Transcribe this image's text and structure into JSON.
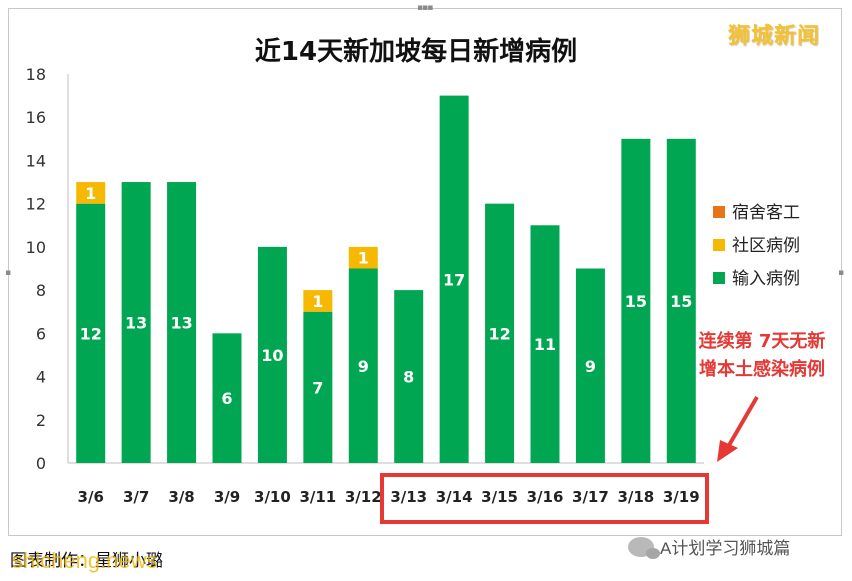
{
  "chart_data": {
    "type": "bar",
    "stacked": true,
    "title": "近14天新加坡每日新增病例",
    "categories": [
      "3/6",
      "3/7",
      "3/8",
      "3/9",
      "3/10",
      "3/11",
      "3/12",
      "3/13",
      "3/14",
      "3/15",
      "3/16",
      "3/17",
      "3/18",
      "3/19"
    ],
    "series": [
      {
        "name": "输入病例",
        "color": "#00a651",
        "values": [
          12,
          13,
          13,
          6,
          10,
          7,
          9,
          8,
          17,
          12,
          11,
          9,
          15,
          15
        ]
      },
      {
        "name": "社区病例",
        "color": "#f7b801",
        "values": [
          1,
          0,
          0,
          0,
          0,
          1,
          1,
          0,
          0,
          0,
          0,
          0,
          0,
          0
        ]
      },
      {
        "name": "宿舍客工",
        "color": "#e8741a",
        "values": [
          0,
          0,
          0,
          0,
          0,
          0,
          0,
          0,
          0,
          0,
          0,
          0,
          0,
          0
        ]
      }
    ],
    "yticks": [
      "0",
      "2",
      "4",
      "6",
      "8",
      "10",
      "12",
      "14",
      "16",
      "18"
    ],
    "ylim": [
      0,
      18
    ],
    "grid": false,
    "legend": "right",
    "highlight": {
      "from": "3/13",
      "to": "3/19",
      "color": "#e53935"
    },
    "annotation": {
      "lines": [
        "连续第 7天无新",
        "增本土感染病例"
      ],
      "color": "#e53935"
    }
  },
  "logo_text": "狮城新闻",
  "caption": "图表制作：星狮小璐",
  "watermark_site": "shicheng.news",
  "wechat_label": "A计划学习狮城篇"
}
